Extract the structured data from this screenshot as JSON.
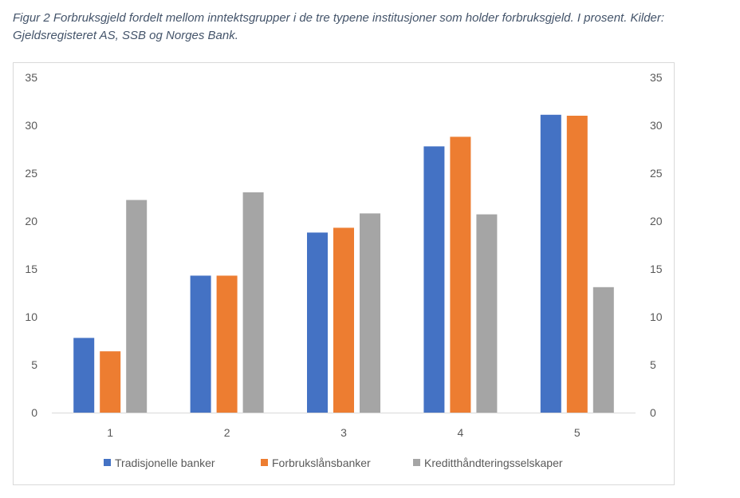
{
  "caption": "Figur 2 Forbruksgjeld fordelt mellom inntektsgrupper i de tre typene institusjoner som holder forbruksgjeld. I prosent. Kilder: Gjeldsregisteret AS, SSB og Norges Bank.",
  "chart_data": {
    "type": "bar",
    "title": "",
    "xlabel": "",
    "ylabel": "",
    "categories": [
      "1",
      "2",
      "3",
      "4",
      "5"
    ],
    "ylim": [
      0,
      35
    ],
    "yticks": [
      "0",
      "5",
      "10",
      "15",
      "20",
      "25",
      "30",
      "35"
    ],
    "secondary_yticks": [
      "0",
      "5",
      "10",
      "15",
      "20",
      "25",
      "30",
      "35"
    ],
    "grid": false,
    "legend_position": "bottom",
    "series": [
      {
        "name": "Tradisjonelle banker",
        "color": "#4472c4",
        "values": [
          7.8,
          14.3,
          18.8,
          27.8,
          31.1
        ]
      },
      {
        "name": "Forbrukslånsbanker",
        "color": "#ed7d31",
        "values": [
          6.4,
          14.3,
          19.3,
          28.8,
          31.0
        ]
      },
      {
        "name": "Kreditthåndteringsselskaper",
        "color": "#a5a5a5",
        "values": [
          22.2,
          23.0,
          20.8,
          20.7,
          13.1
        ]
      }
    ]
  }
}
